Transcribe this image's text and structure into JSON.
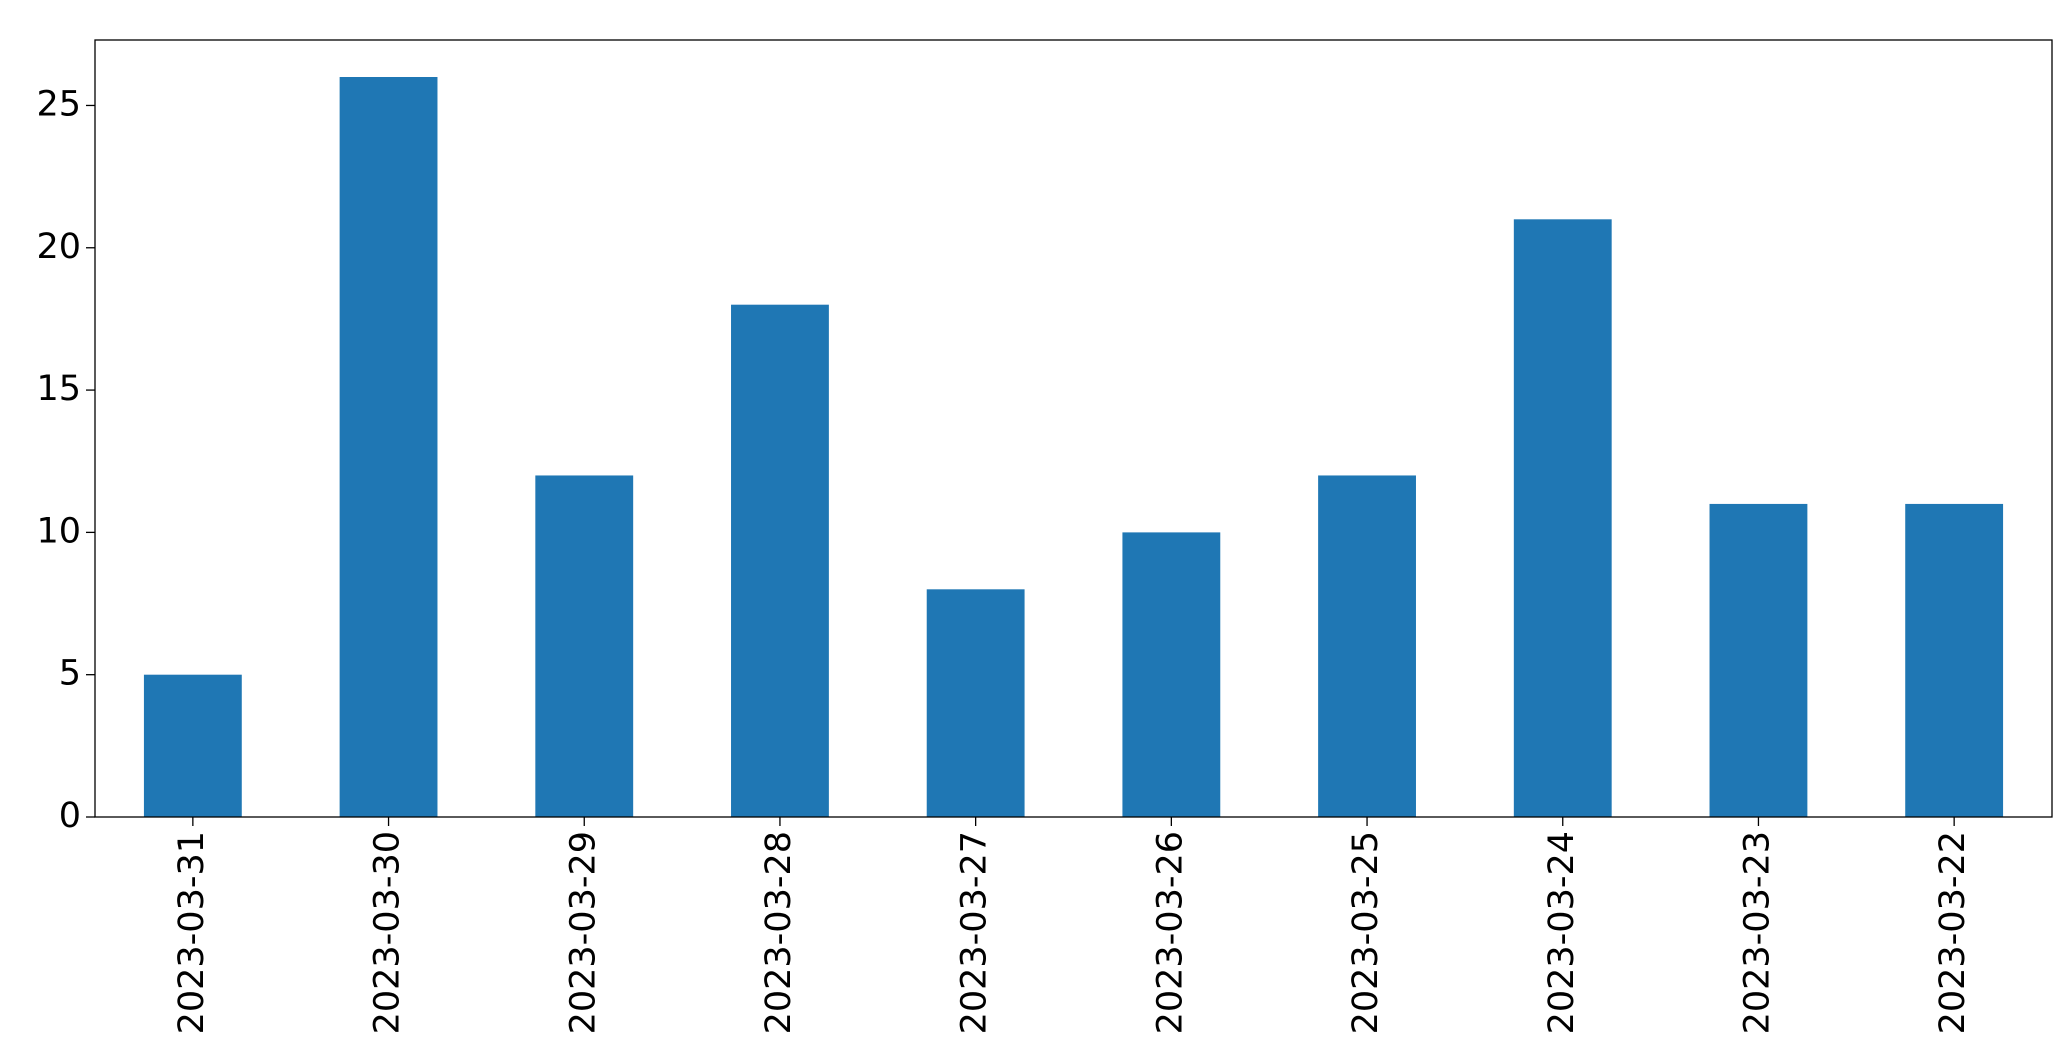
{
  "chart_data": {
    "type": "bar",
    "categories": [
      "2023-03-31",
      "2023-03-30",
      "2023-03-29",
      "2023-03-28",
      "2023-03-27",
      "2023-03-26",
      "2023-03-25",
      "2023-03-24",
      "2023-03-23",
      "2023-03-22"
    ],
    "values": [
      5,
      26,
      12,
      18,
      8,
      10,
      12,
      21,
      11,
      11
    ],
    "color": "#1f77b4",
    "ylim": [
      0,
      27.3
    ],
    "yticks": [
      0,
      5,
      10,
      15,
      20,
      25
    ],
    "grid": false
  }
}
